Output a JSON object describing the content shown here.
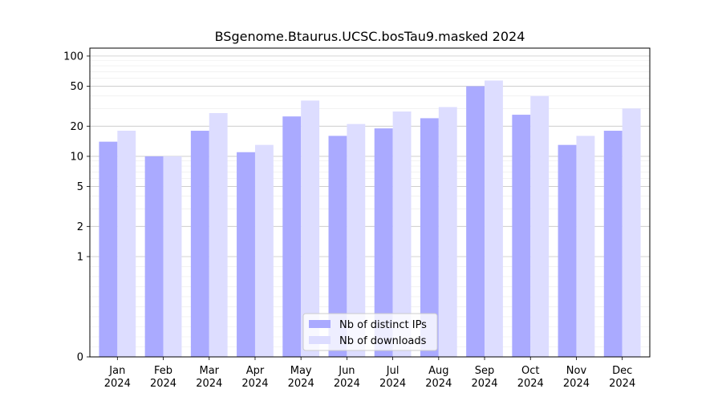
{
  "chart_data": {
    "type": "bar",
    "title": "BSgenome.Btaurus.UCSC.bosTau9.masked 2024",
    "xlabel": "",
    "ylabel": "",
    "categories": [
      "Jan\n2024",
      "Feb\n2024",
      "Mar\n2024",
      "Apr\n2024",
      "May\n2024",
      "Jun\n2024",
      "Jul\n2024",
      "Aug\n2024",
      "Sep\n2024",
      "Oct\n2024",
      "Nov\n2024",
      "Dec\n2024"
    ],
    "series": [
      {
        "name": "Nb of distinct IPs",
        "color": "#aaaaff",
        "values": [
          14,
          10,
          18,
          11,
          25,
          16,
          19,
          24,
          50,
          26,
          13,
          18
        ]
      },
      {
        "name": "Nb of downloads",
        "color": "#ddddff",
        "values": [
          18,
          10,
          27,
          13,
          36,
          21,
          28,
          31,
          57,
          40,
          16,
          30
        ]
      }
    ],
    "y_scale": "symlog",
    "y_ticks": [
      0,
      1,
      2,
      5,
      10,
      20,
      50,
      100
    ],
    "y_tick_labels": [
      "0",
      "1",
      "2",
      "5",
      "10",
      "20",
      "50",
      "100"
    ],
    "ylim": [
      0,
      120
    ],
    "grid": "y",
    "legend_position": "bottom-center"
  }
}
